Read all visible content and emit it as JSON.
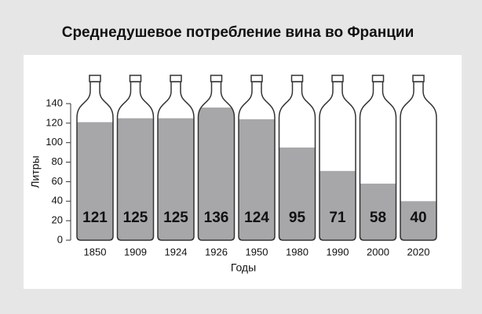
{
  "chart_data": {
    "type": "bottle-bar",
    "title": "Среднедушевое потребление вина во Франции",
    "categories": [
      "1850",
      "1909",
      "1924",
      "1926",
      "1950",
      "1980",
      "1990",
      "2000",
      "2020"
    ],
    "values": [
      121,
      125,
      125,
      136,
      124,
      95,
      71,
      58,
      40
    ],
    "color": "#a7a7a9",
    "ylim": [
      0,
      140
    ],
    "yticks": [
      0,
      20,
      40,
      60,
      80,
      100,
      120,
      140
    ],
    "ylabel": "Литры",
    "xlabel": "Годы"
  }
}
